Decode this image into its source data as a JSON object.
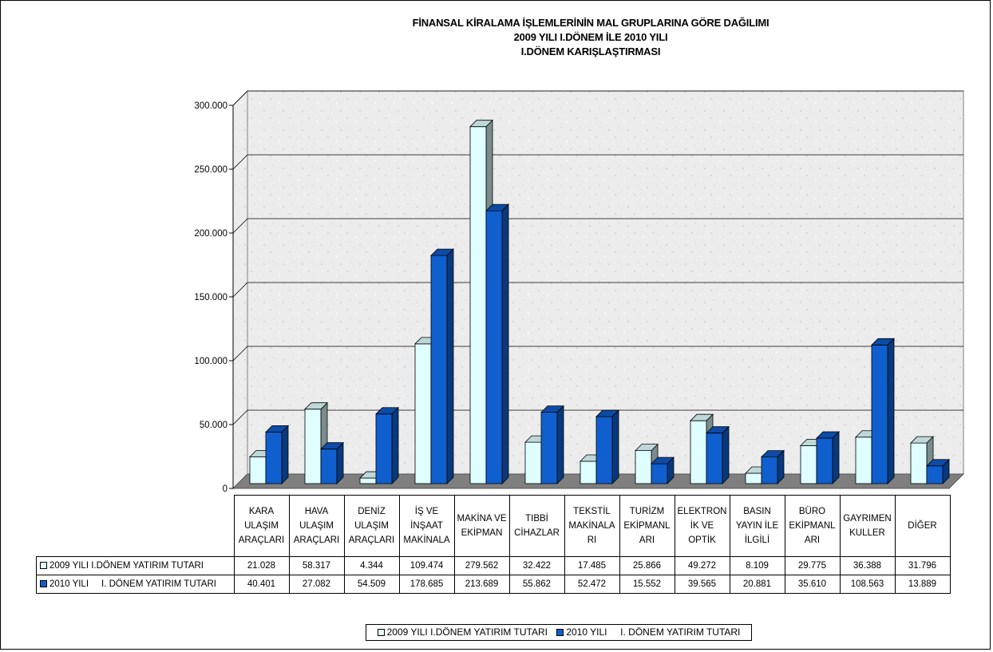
{
  "chart_data": {
    "type": "bar",
    "title_lines": [
      "FİNANSAL KİRALAMA İŞLEMLERİNİN MAL GRUPLARINA GÖRE DAĞILIMI",
      "2009 YILI I.DÖNEM İLE 2010  YILI",
      "I.DÖNEM KARIŞLAŞTIRMASI"
    ],
    "categories": [
      "KARA ULAŞIM ARAÇLARI",
      "HAVA ULAŞIM ARAÇLARI",
      "DENİZ ULAŞIM ARAÇLARI",
      "İŞ VE İNŞAAT MAKİNALA",
      "MAKİNA VE EKİPMAN",
      "TIBBİ CİHAZLAR",
      "TEKSTİL MAKİNALARI",
      "TURİZM EKİPMANLARI",
      "ELEKTRONİK VE OPTİK",
      "BASIN YAYIN İLE İLGİLİ",
      "BÜRO EKİPMANLARI",
      "GAYRIMENKULLER",
      "DİĞER"
    ],
    "category_lines": [
      [
        "KARA",
        "ULAŞIM",
        "ARAÇLARI"
      ],
      [
        "HAVA",
        "ULAŞIM",
        "ARAÇLARI"
      ],
      [
        "DENİZ",
        "ULAŞIM",
        "ARAÇLARI"
      ],
      [
        "İŞ VE",
        "İNŞAAT",
        "MAKİNALA"
      ],
      [
        "MAKİNA VE",
        "EKİPMAN"
      ],
      [
        "TIBBİ",
        "CİHAZLAR"
      ],
      [
        "TEKSTİL",
        "MAKİNALA",
        "RI"
      ],
      [
        "TURİZM",
        "EKİPMANL",
        "ARI"
      ],
      [
        "ELEKTRON",
        "İK VE",
        "OPTİK"
      ],
      [
        "BASIN",
        "YAYIN İLE",
        "İLGİLİ"
      ],
      [
        "BÜRO",
        "EKİPMANL",
        "ARI"
      ],
      [
        "GAYRIMEN",
        "KULLER"
      ],
      [
        "DİĞER"
      ]
    ],
    "series": [
      {
        "name": "2009 YILI I.DÖNEM YATIRIM TUTARI",
        "color": "#dffeff",
        "values": [
          21028,
          58317,
          4344,
          109474,
          279562,
          32422,
          17485,
          25866,
          49272,
          8109,
          29775,
          36388,
          31796
        ],
        "labels": [
          "21.028",
          "58.317",
          "4.344",
          "109.474",
          "279.562",
          "32.422",
          "17.485",
          "25.866",
          "49.272",
          "8.109",
          "29.775",
          "36.388",
          "31.796"
        ]
      },
      {
        "name": "2010 YILI     I. DÖNEM YATIRIM TUTARI",
        "color": "#0f5fcf",
        "values": [
          40401,
          27082,
          54509,
          178685,
          213689,
          55862,
          52472,
          15552,
          39565,
          20881,
          35610,
          108563,
          13889
        ],
        "labels": [
          "40.401",
          "27.082",
          "54.509",
          "178.685",
          "213.689",
          "55.862",
          "52.472",
          "15.552",
          "39.565",
          "20.881",
          "35.610",
          "108.563",
          "13.889"
        ]
      }
    ],
    "yticks": [
      0,
      50000,
      100000,
      150000,
      200000,
      250000,
      300000
    ],
    "ytick_labels": [
      "0",
      "50.000",
      "100.000",
      "150.000",
      "200.000",
      "250.000",
      "300.000"
    ],
    "ylim": [
      0,
      300000
    ],
    "grid": true,
    "legend_position": "bottom"
  }
}
